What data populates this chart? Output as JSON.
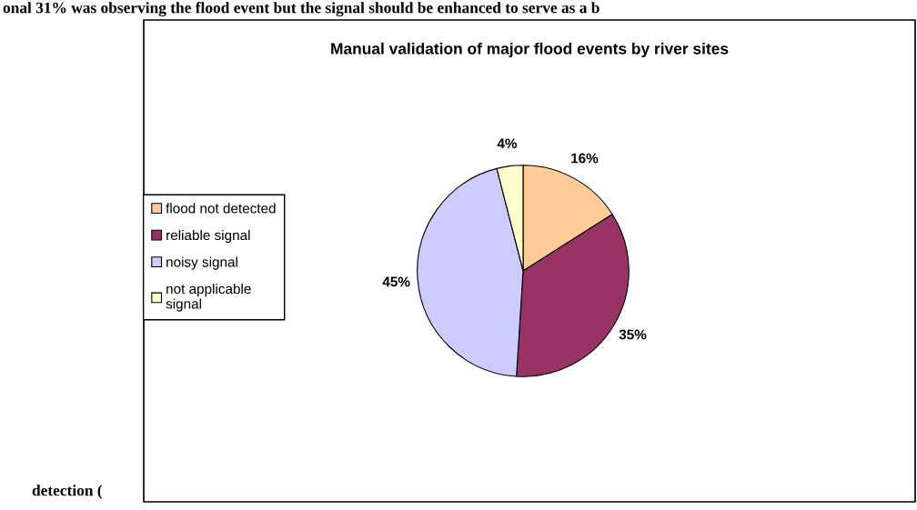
{
  "chart_data": {
    "type": "pie",
    "title": "Manual validation of major flood events by river sites",
    "categories": [
      "flood not detected",
      "reliable signal",
      "noisy signal",
      "not applicable\nsignal"
    ],
    "values": [
      16,
      35,
      45,
      4
    ],
    "colors": [
      "#ffcc99",
      "#993366",
      "#ccccff",
      "#ffffcc"
    ],
    "value_labels": [
      "16%",
      "35%",
      "45%",
      "4%"
    ],
    "legend": "left",
    "annotations": [
      "onal 31% was observing the flood event but the signal should be enhanced to serve as a b",
      "detection ("
    ]
  }
}
